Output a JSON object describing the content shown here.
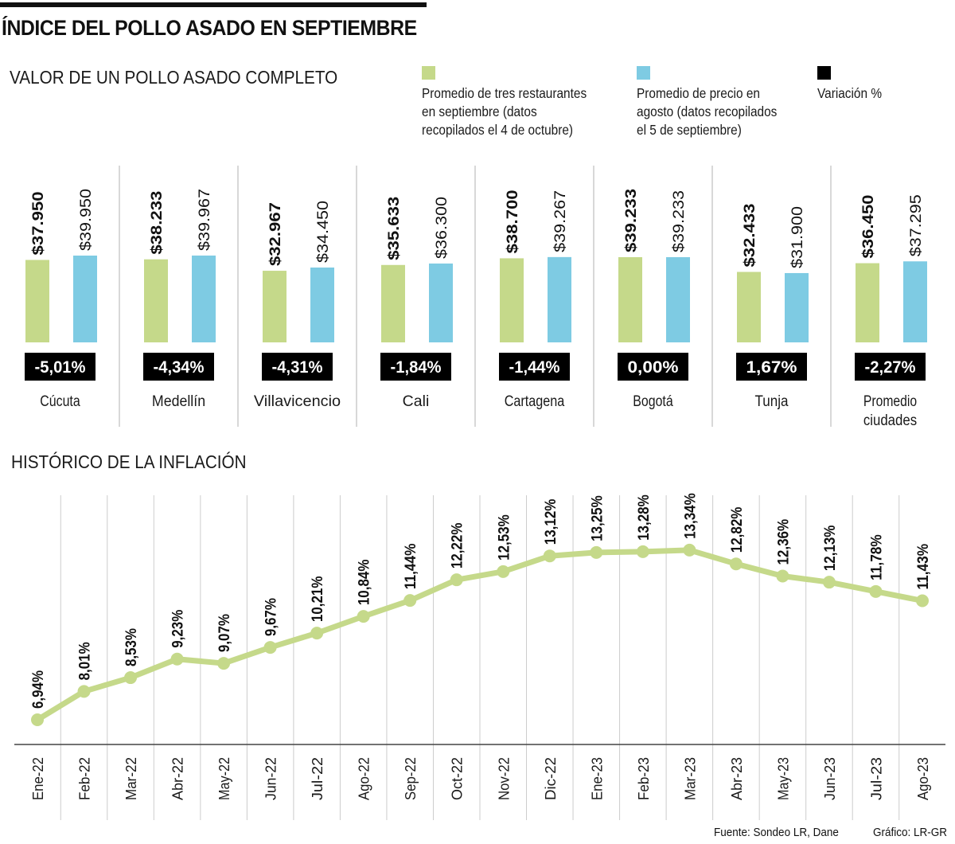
{
  "title": "ÍNDICE DEL POLLO ASADO EN SEPTIEMBRE",
  "colors": {
    "september": "#c5d98a",
    "august": "#7ecbe3",
    "variation": "#000000",
    "line": "#c5d98a",
    "grid": "#cccccc"
  },
  "legend": [
    {
      "key": "september",
      "label": "Promedio de tres restaurantes\nen septiembre (datos\nrecopilados el 4 de octubre)"
    },
    {
      "key": "august",
      "label": "Promedio de precio en\nagosto (datos recopilados\nel 5 de septiembre)"
    },
    {
      "key": "variation",
      "label": "Variación %"
    }
  ],
  "chart_data": [
    {
      "type": "bar",
      "title": "VALOR DE UN POLLO ASADO COMPLETO",
      "categories": [
        "Cúcuta",
        "Medellín",
        "Villavicencio",
        "Cali",
        "Cartagena",
        "Bogotá",
        "Tunja",
        "Promedio ciudades"
      ],
      "series": [
        {
          "name": "Promedio de tres restaurantes en septiembre (datos recopilados el 4 de octubre)",
          "key": "september",
          "values": [
            37950,
            38233,
            32967,
            35633,
            38700,
            39233,
            32433,
            36450
          ],
          "labels": [
            "$37.950",
            "$38.233",
            "$32.967",
            "$35.633",
            "$38.700",
            "$39.233",
            "$32.433",
            "$36.450"
          ]
        },
        {
          "name": "Promedio de precio en agosto (datos recopilados el 5 de septiembre)",
          "key": "august",
          "values": [
            39950,
            39967,
            34450,
            36300,
            39267,
            39233,
            31900,
            37295
          ],
          "labels": [
            "$39.950",
            "$39.967",
            "$34.450",
            "$36.300",
            "$39.267",
            "$39.233",
            "$31.900",
            "$37.295"
          ]
        }
      ],
      "variation": {
        "name": "Variación %",
        "values": [
          -5.01,
          -4.34,
          -4.31,
          -1.84,
          -1.44,
          0.0,
          1.67,
          -2.27
        ],
        "labels": [
          "-5,01%",
          "-4,34%",
          "-4,31%",
          "-1,84%",
          "-1,44%",
          "0,00%",
          "1,67%",
          "-2,27%"
        ]
      },
      "ylim": [
        0,
        40000
      ],
      "grid": false
    },
    {
      "type": "line",
      "title": "HISTÓRICO DE LA INFLACIÓN",
      "categories": [
        "Ene-22",
        "Feb-22",
        "Mar-22",
        "Abr-22",
        "May-22",
        "Jun-22",
        "Jul-22",
        "Ago-22",
        "Sep-22",
        "Oct-22",
        "Nov-22",
        "Dic-22",
        "Ene-23",
        "Feb-23",
        "Mar-23",
        "Abr-23",
        "May-23",
        "Jun-23",
        "Jul-23",
        "Ago-23"
      ],
      "series": [
        {
          "name": "Inflación",
          "values": [
            6.94,
            8.01,
            8.53,
            9.23,
            9.07,
            9.67,
            10.21,
            10.84,
            11.44,
            12.22,
            12.53,
            13.12,
            13.25,
            13.28,
            13.34,
            12.82,
            12.36,
            12.13,
            11.78,
            11.43
          ],
          "labels": [
            "6,94%",
            "8,01%",
            "8,53%",
            "9,23%",
            "9,07%",
            "9,67%",
            "10,21%",
            "10,84%",
            "11,44%",
            "12,22%",
            "12,53%",
            "13,12%",
            "13,25%",
            "13,28%",
            "13,34%",
            "12,82%",
            "12,36%",
            "12,13%",
            "11,78%",
            "11,43%"
          ]
        }
      ],
      "xlabel": "",
      "ylabel": "",
      "grid": true
    }
  ],
  "footer": {
    "source": "Fuente: Sondeo LR, Dane",
    "credit": "Gráfico: LR-GR"
  }
}
